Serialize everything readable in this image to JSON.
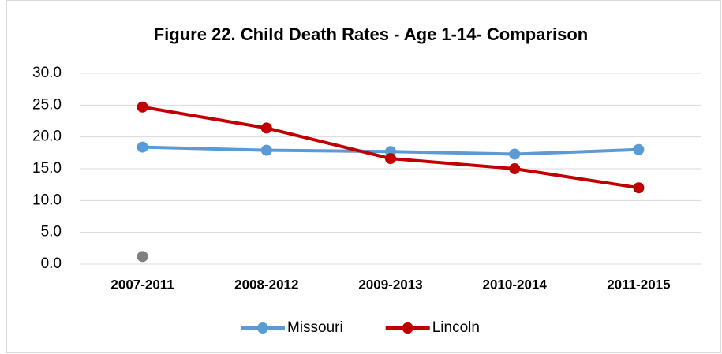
{
  "chart_data": {
    "type": "line",
    "title": "Figure 22. Child Death Rates - Age 1-14- Comparison",
    "categories": [
      "2007-2011",
      "2008-2012",
      "2009-2013",
      "2010-2014",
      "2011-2015"
    ],
    "series": [
      {
        "name": "Missouri",
        "color": "#5b9bd5",
        "values": [
          18.4,
          17.9,
          17.7,
          17.3,
          18.0
        ]
      },
      {
        "name": "Lincoln",
        "color": "#c00000",
        "values": [
          24.7,
          21.4,
          16.6,
          15.0,
          12.0
        ]
      },
      {
        "color": "#808080",
        "values": [
          1.2,
          null,
          null,
          null,
          null
        ]
      }
    ],
    "ylim": [
      0,
      30
    ],
    "yticks": [
      {
        "value": 0,
        "label": "0.0"
      },
      {
        "value": 5,
        "label": "5.0"
      },
      {
        "value": 10,
        "label": "10.0"
      },
      {
        "value": 15,
        "label": "15.0"
      },
      {
        "value": 20,
        "label": "20.0"
      },
      {
        "value": 25,
        "label": "25.0"
      },
      {
        "value": 30,
        "label": "30.0"
      }
    ],
    "grid": true,
    "legend": "bottom"
  }
}
